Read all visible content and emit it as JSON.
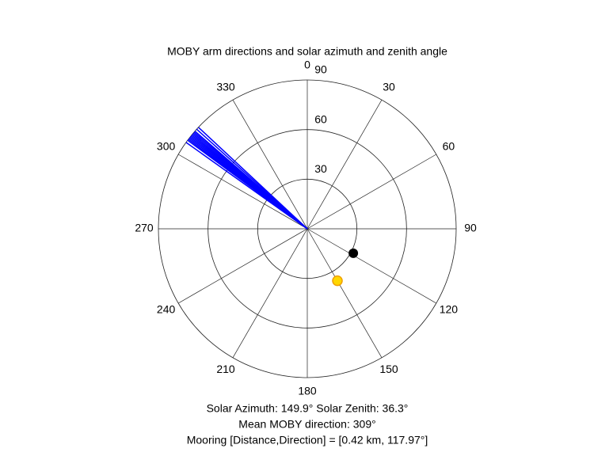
{
  "chart_data": {
    "type": "polar",
    "title": "MOBY arm directions and solar azimuth and zenith angle",
    "rlim": [
      0,
      90
    ],
    "rticks": [
      30,
      60,
      90
    ],
    "thetaticks": [
      0,
      30,
      60,
      90,
      120,
      150,
      180,
      210,
      240,
      270,
      300,
      330
    ],
    "grid": true,
    "arms": {
      "color": "#0000ff",
      "theta": [
        305.5,
        306.5,
        307,
        307.5,
        308,
        308.5,
        309,
        309.5,
        310,
        310.5,
        311,
        312,
        313
      ],
      "r": [
        90,
        90,
        90,
        90,
        90,
        90,
        90,
        90,
        90,
        90,
        90,
        90,
        90
      ]
    },
    "mooring": {
      "theta": 117.97,
      "r": 31.5,
      "color": "#000000"
    },
    "sun": {
      "theta": 149.9,
      "r": 36.3,
      "color": "#ffd700"
    },
    "annotations": [
      "Solar Azimuth: 149.9°    Solar Zenith: 36.3°",
      "Mean MOBY direction: 309°",
      "Mooring [Distance,Direction] = [0.42 km, 117.97°]"
    ]
  }
}
